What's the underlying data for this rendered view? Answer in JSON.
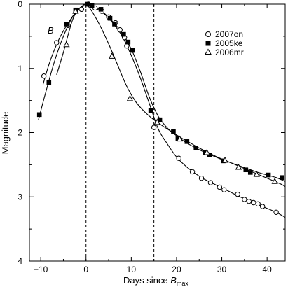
{
  "chart_data": {
    "type": "scatter",
    "panel_label": "B",
    "xlabel_main": "Days since ",
    "xlabel_italic": "B",
    "xlabel_sub": "max",
    "ylabel": "Magnitude",
    "xlim": [
      -12.5,
      44
    ],
    "ylim": [
      0,
      4
    ],
    "y_inverted": true,
    "xticks": [
      -10,
      0,
      10,
      20,
      30,
      40
    ],
    "xtick_labels": [
      "−10",
      "0",
      "10",
      "20",
      "30",
      "40"
    ],
    "yticks": [
      0,
      1,
      2,
      3,
      4
    ],
    "ytick_labels": [
      "0",
      "1",
      "2",
      "3",
      "4"
    ],
    "vlines": [
      0,
      15
    ],
    "legend_position": "top-right",
    "series": [
      {
        "name": "2007on",
        "marker": "circle-open",
        "x": [
          -9.3,
          -6.5,
          -4.0,
          -1.0,
          0.5,
          2.0,
          3.5,
          5.0,
          6.5,
          7.5,
          8.5,
          9.0,
          15.0,
          20.5,
          23.5,
          25.5,
          27.5,
          29.5,
          30.5,
          33.5,
          35.0,
          36.0,
          37.0,
          38.0,
          39.0,
          42.0
        ],
        "y": [
          1.12,
          0.6,
          0.33,
          0.08,
          0.0,
          0.06,
          0.11,
          0.2,
          0.29,
          0.4,
          0.52,
          0.65,
          1.92,
          2.4,
          2.61,
          2.71,
          2.78,
          2.85,
          2.89,
          2.96,
          3.04,
          3.07,
          3.09,
          3.11,
          3.15,
          3.24
        ]
      },
      {
        "name": "2005ke",
        "marker": "square-filled",
        "x": [
          -10.3,
          -8.2,
          -4.3,
          -2.3,
          0.3,
          1.3,
          3.3,
          5.3,
          6.3,
          8.3,
          9.3,
          10.3,
          14.3,
          16.3,
          19.3,
          20.3,
          22.3,
          24.3,
          26.3,
          27.3,
          30.3,
          35.3,
          36.3,
          40.3,
          43.3
        ],
        "y": [
          1.72,
          1.22,
          0.31,
          0.09,
          0.0,
          0.02,
          0.08,
          0.22,
          0.31,
          0.47,
          0.59,
          0.72,
          1.66,
          1.8,
          1.98,
          2.09,
          2.14,
          2.24,
          2.31,
          2.35,
          2.44,
          2.58,
          2.62,
          2.66,
          2.7
        ]
      },
      {
        "name": "2006mr",
        "marker": "triangle-open",
        "x": [
          -4.3,
          -2.3,
          5.7,
          9.7,
          15.7,
          20.7,
          26.7,
          30.7,
          33.7,
          37.7,
          41.7
        ],
        "y": [
          0.63,
          0.11,
          0.81,
          1.47,
          1.84,
          2.1,
          2.31,
          2.43,
          2.54,
          2.65,
          2.76
        ]
      }
    ],
    "fit_curves": [
      {
        "x": [
          -9.5,
          -8,
          -6,
          -4,
          -2,
          -1,
          0,
          2,
          4,
          6,
          8,
          10,
          12,
          14,
          16,
          18,
          20,
          22,
          24,
          26,
          28,
          30,
          32,
          34,
          36,
          38,
          40,
          42,
          44
        ],
        "y": [
          1.25,
          0.9,
          0.55,
          0.3,
          0.1,
          0.04,
          0.0,
          0.06,
          0.15,
          0.3,
          0.5,
          0.8,
          1.15,
          1.55,
          1.95,
          2.18,
          2.38,
          2.52,
          2.63,
          2.72,
          2.79,
          2.86,
          2.93,
          3.0,
          3.06,
          3.12,
          3.18,
          3.24,
          3.32
        ]
      },
      {
        "x": [
          -10.5,
          -9,
          -7,
          -5,
          -3,
          -1,
          0,
          2,
          4,
          6,
          8,
          10,
          12,
          14,
          16,
          18,
          20,
          22,
          24,
          26,
          28,
          30,
          32,
          34,
          36,
          38,
          40,
          42,
          44
        ],
        "y": [
          1.8,
          1.4,
          0.9,
          0.5,
          0.2,
          0.04,
          0.0,
          0.04,
          0.14,
          0.28,
          0.45,
          0.7,
          1.05,
          1.45,
          1.75,
          1.93,
          2.05,
          2.15,
          2.23,
          2.3,
          2.36,
          2.42,
          2.47,
          2.52,
          2.57,
          2.62,
          2.66,
          2.7,
          2.76
        ]
      },
      {
        "x": [
          -6.5,
          -5,
          -3,
          -1.5,
          0,
          1,
          3,
          5,
          7,
          9,
          11,
          13,
          15,
          17,
          19,
          21,
          23,
          25,
          27,
          29,
          31,
          33,
          35,
          37,
          39,
          41,
          43,
          44
        ],
        "y": [
          1.1,
          0.75,
          0.25,
          0.08,
          0.02,
          0.08,
          0.32,
          0.62,
          0.95,
          1.28,
          1.52,
          1.68,
          1.8,
          1.9,
          1.99,
          2.08,
          2.16,
          2.24,
          2.31,
          2.38,
          2.44,
          2.5,
          2.56,
          2.62,
          2.68,
          2.74,
          2.8,
          2.84
        ]
      }
    ]
  }
}
